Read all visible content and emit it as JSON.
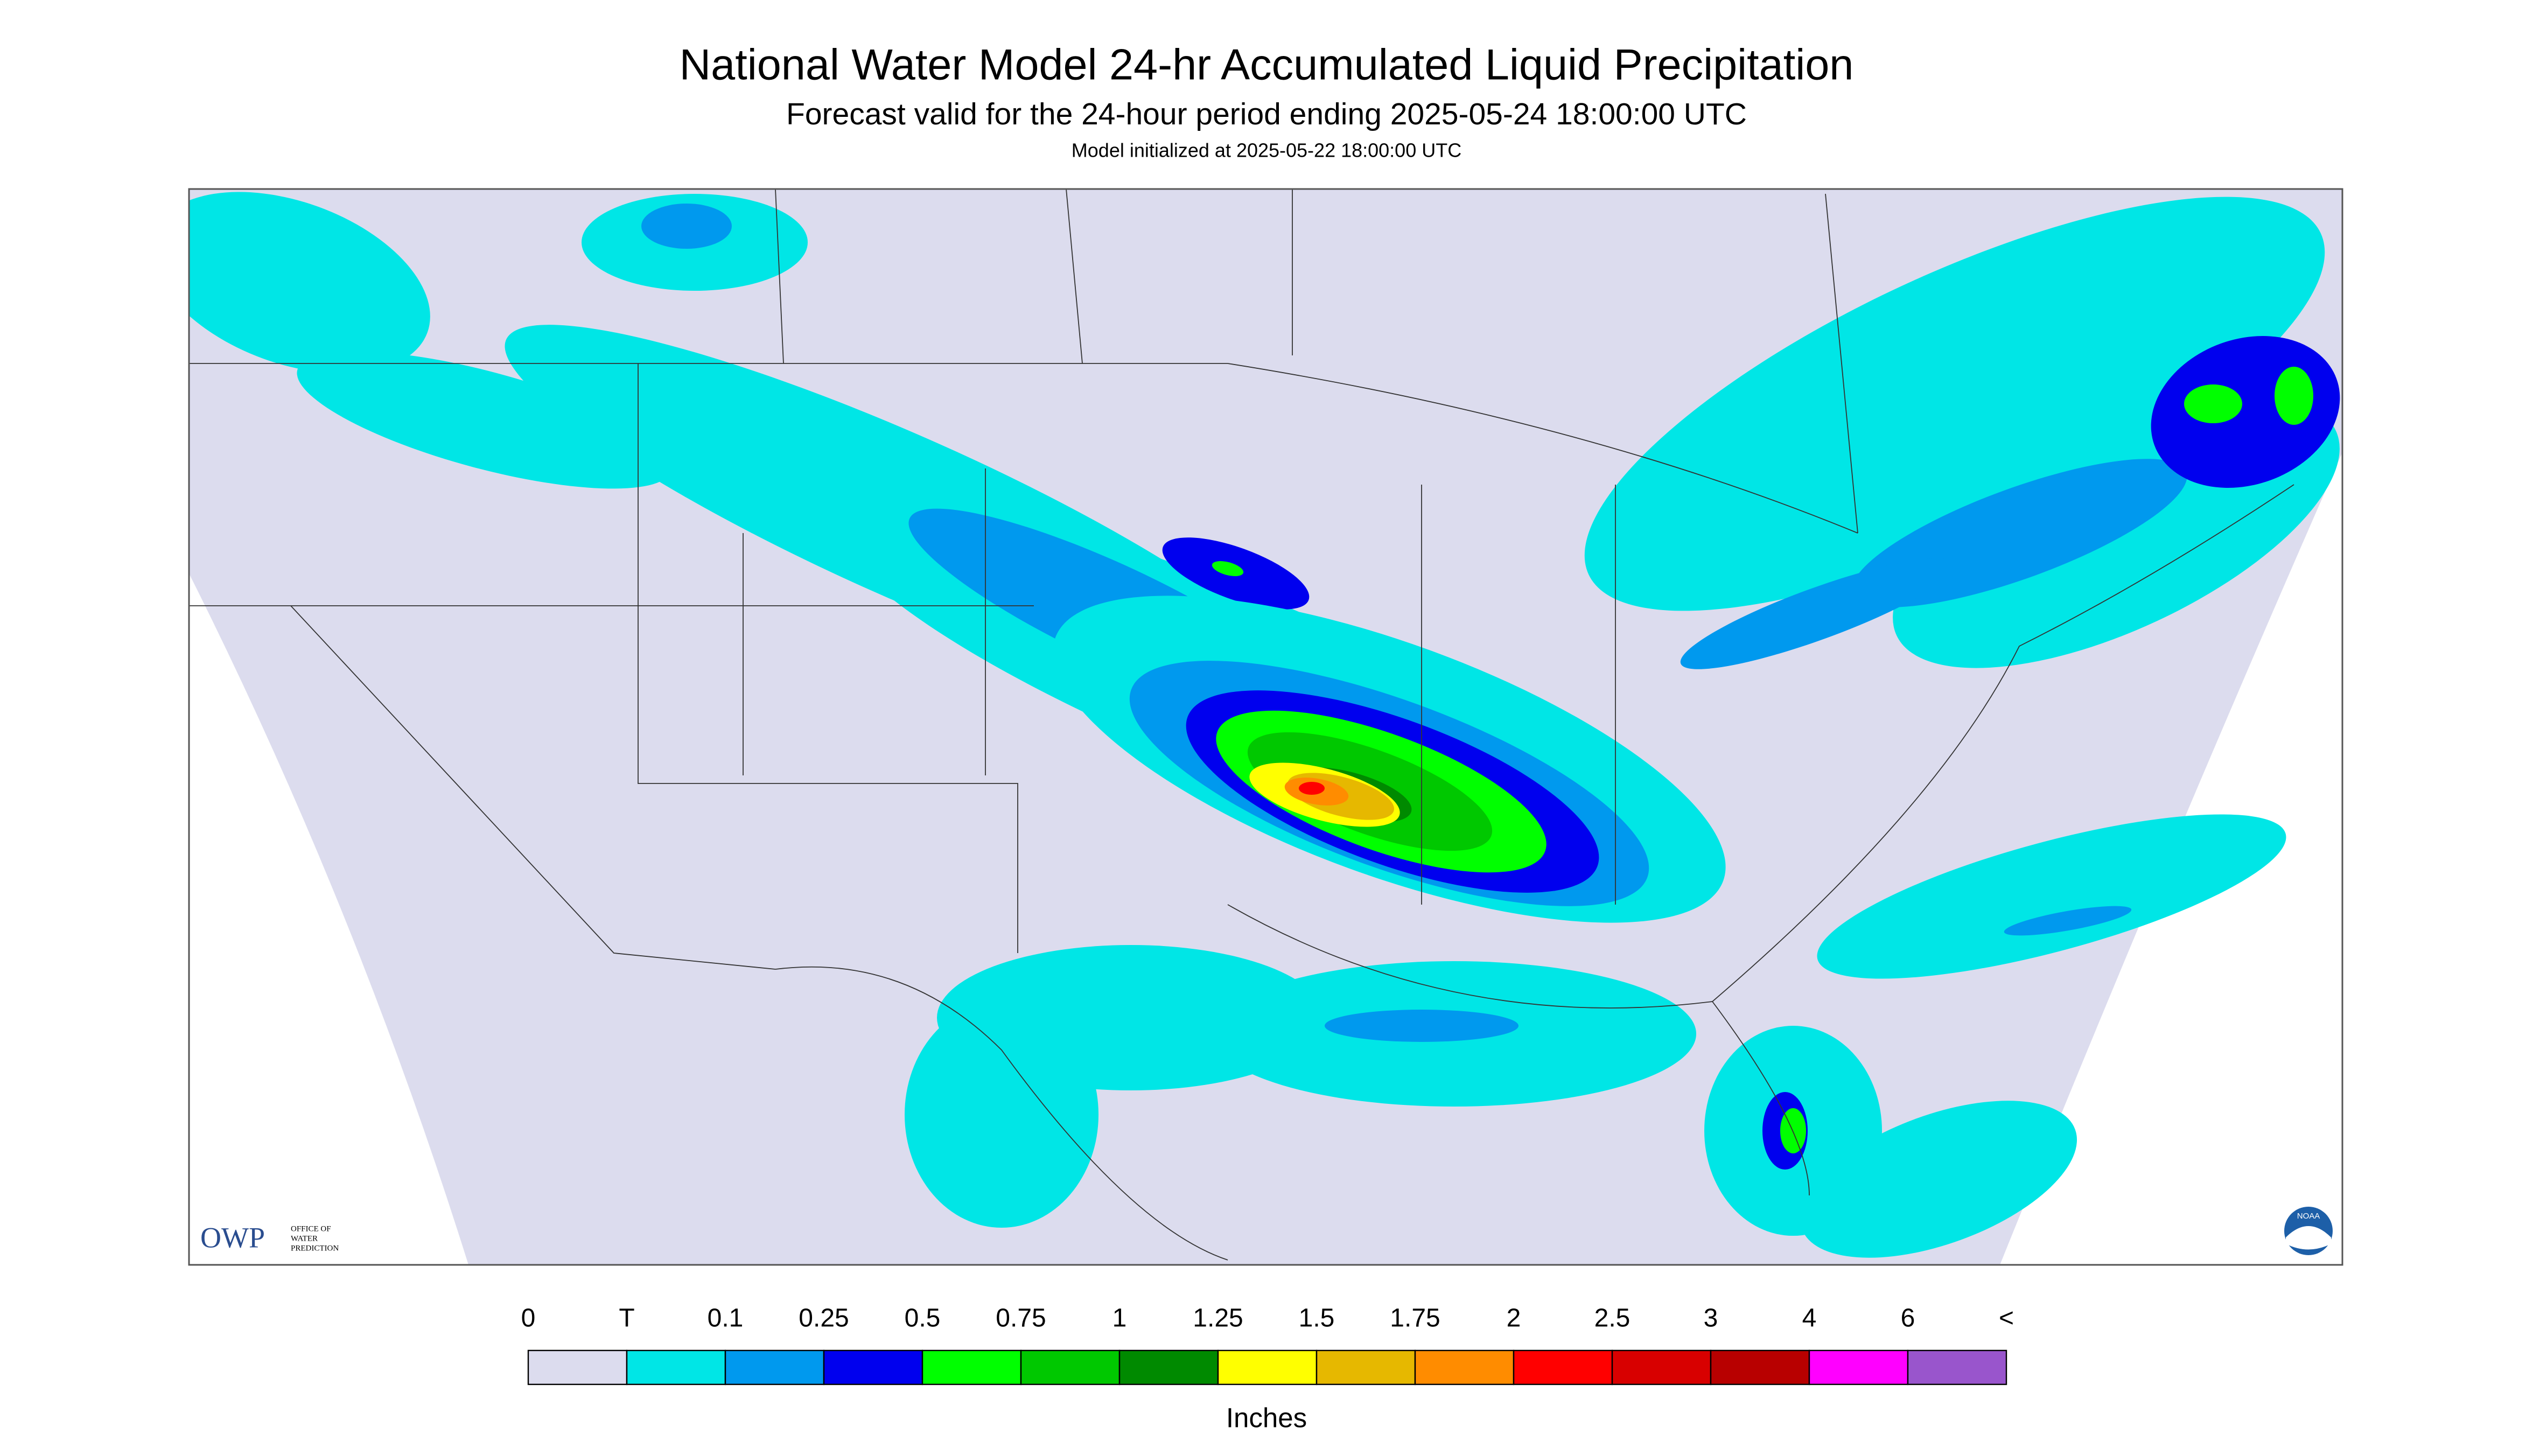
{
  "header": {
    "title": "National Water Model 24-hr Accumulated Liquid Precipitation",
    "subtitle": "Forecast valid for the 24-hour period ending 2025-05-24 18:00:00 UTC",
    "note": "Model initialized at 2025-05-22 18:00:00 UTC"
  },
  "legend": {
    "labels": [
      "0",
      "T",
      "0.1",
      "0.25",
      "0.5",
      "0.75",
      "1",
      "1.25",
      "1.5",
      "1.75",
      "2",
      "2.5",
      "3",
      "4",
      "6",
      "<"
    ],
    "colors": [
      "#dcdcee",
      "#00e6e6",
      "#0099ee",
      "#0000ee",
      "#00ff00",
      "#00c800",
      "#008a00",
      "#ffff00",
      "#e6b800",
      "#ff8c00",
      "#ff0000",
      "#d80000",
      "#b80000",
      "#ff00ff",
      "#9955cc"
    ],
    "unit": "Inches"
  },
  "logos": {
    "owp": "OWP",
    "owp_name": [
      "OFFICE OF",
      "WATER",
      "PREDICTION"
    ],
    "noaa": "NOAA"
  }
}
